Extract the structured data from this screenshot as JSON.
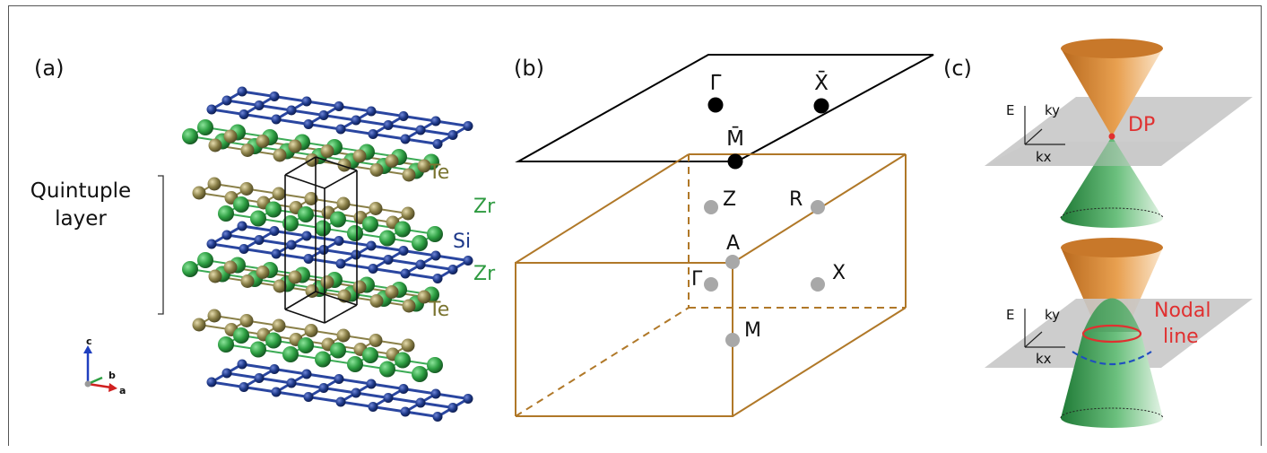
{
  "panels": {
    "a": {
      "label": "(a)",
      "quintuple_label_line1": "Quintuple",
      "quintuple_label_line2": "layer",
      "atoms": [
        {
          "symbol": "Te",
          "color": "#7a7430"
        },
        {
          "symbol": "Zr",
          "color": "#2e9a40"
        },
        {
          "symbol": "Si",
          "color": "#1f3a8a"
        },
        {
          "symbol": "Zr",
          "color": "#2e9a40"
        },
        {
          "symbol": "Te",
          "color": "#7a7430"
        }
      ],
      "axes": {
        "c": "c",
        "b": "b",
        "a": "a"
      },
      "atom_colors": {
        "Si": "#1f3a8a",
        "Zr": "#2ea043",
        "Te": "#8a8048"
      }
    },
    "b": {
      "label": "(b)",
      "surface_points": [
        {
          "label": "Γ̄"
        },
        {
          "label": "X̄"
        },
        {
          "label": "M̄"
        }
      ],
      "bulk_points": [
        {
          "label": "Z"
        },
        {
          "label": "R"
        },
        {
          "label": "A"
        },
        {
          "label": "Γ"
        },
        {
          "label": "X"
        },
        {
          "label": "M"
        }
      ],
      "box_color": "#b07828"
    },
    "c": {
      "label": "(c)",
      "top": {
        "E": "E",
        "ky": "ky",
        "kx": "kx",
        "point_label": "DP"
      },
      "bottom": {
        "E": "E",
        "ky": "ky",
        "kx": "kx",
        "line_label_1": "Nodal",
        "line_label_2": "line"
      },
      "accent": "#e03030",
      "cone_upper": "#d9882e",
      "cone_lower": "#2e9a48"
    }
  }
}
